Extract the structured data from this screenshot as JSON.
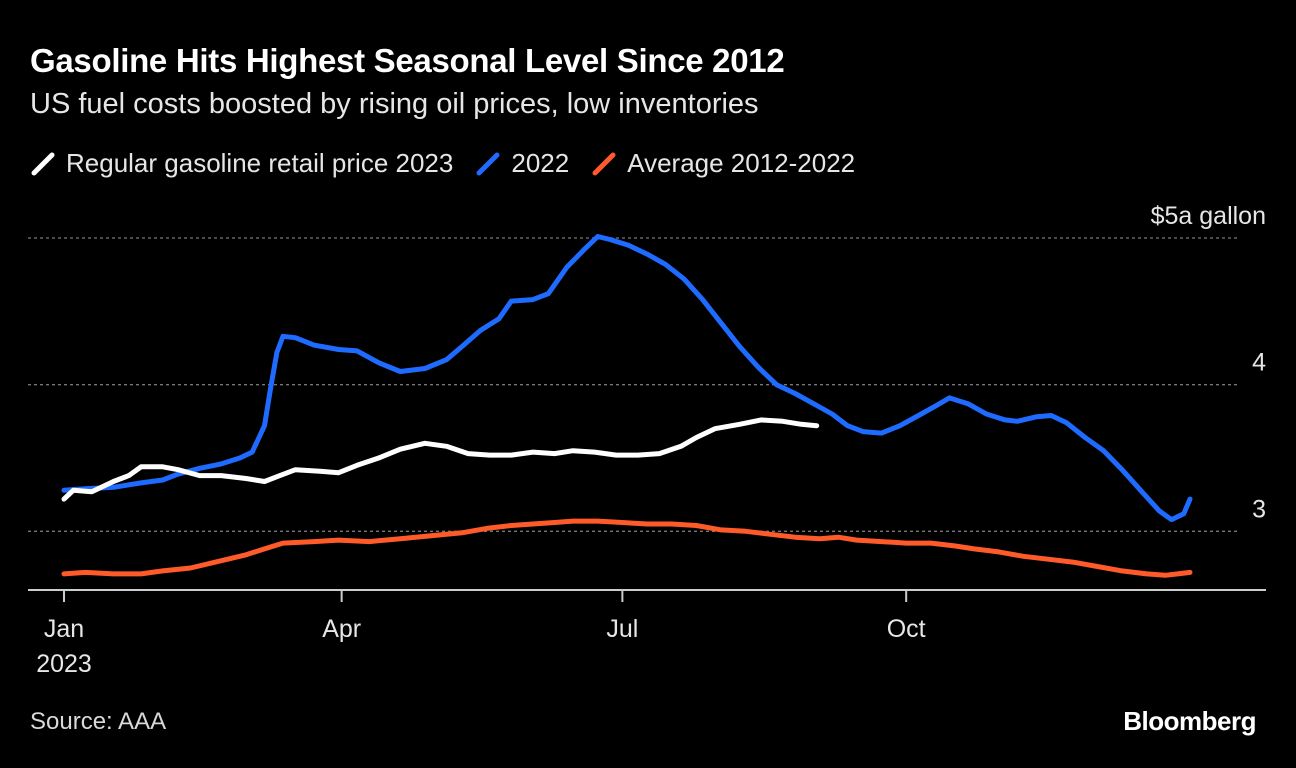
{
  "title": "Gasoline Hits Highest Seasonal Level Since 2012",
  "subtitle": "US fuel costs boosted by rising oil prices, low inventories",
  "source": "Source: AAA",
  "brand": "Bloomberg",
  "colors": {
    "background": "#000000",
    "series_2023": "#ffffff",
    "series_2022": "#1f6bff",
    "series_avg": "#ff5a2a",
    "grid": "#777777"
  },
  "chart_data": {
    "type": "line",
    "title": "Gasoline Hits Highest Seasonal Level Since 2012",
    "subtitle": "US fuel costs boosted by rising oil prices, low inventories",
    "xlabel": "",
    "ylabel": "",
    "x_ticks": [
      {
        "day": 1,
        "label": "Jan",
        "sublabel": "2023"
      },
      {
        "day": 91,
        "label": "Apr"
      },
      {
        "day": 182,
        "label": "Jul"
      },
      {
        "day": 274,
        "label": "Oct"
      }
    ],
    "x_range": [
      1,
      365
    ],
    "y_range": [
      2.6,
      5.0
    ],
    "y_ticks": [
      {
        "value": 5,
        "label": "$5a gallon"
      },
      {
        "value": 4,
        "label": "4"
      },
      {
        "value": 3,
        "label": "3"
      }
    ],
    "grid": true,
    "legend_placement": "top-left",
    "series": [
      {
        "name": "Regular gasoline retail price 2023",
        "color": "#ffffff",
        "points": [
          [
            1,
            3.22
          ],
          [
            4,
            3.28
          ],
          [
            10,
            3.27
          ],
          [
            17,
            3.34
          ],
          [
            22,
            3.38
          ],
          [
            26,
            3.44
          ],
          [
            33,
            3.44
          ],
          [
            38,
            3.42
          ],
          [
            45,
            3.38
          ],
          [
            52,
            3.38
          ],
          [
            60,
            3.36
          ],
          [
            66,
            3.34
          ],
          [
            71,
            3.38
          ],
          [
            76,
            3.42
          ],
          [
            84,
            3.41
          ],
          [
            90,
            3.4
          ],
          [
            96,
            3.45
          ],
          [
            103,
            3.5
          ],
          [
            110,
            3.56
          ],
          [
            118,
            3.6
          ],
          [
            125,
            3.58
          ],
          [
            132,
            3.53
          ],
          [
            139,
            3.52
          ],
          [
            146,
            3.52
          ],
          [
            153,
            3.54
          ],
          [
            160,
            3.53
          ],
          [
            166,
            3.55
          ],
          [
            173,
            3.54
          ],
          [
            180,
            3.52
          ],
          [
            187,
            3.52
          ],
          [
            194,
            3.53
          ],
          [
            201,
            3.58
          ],
          [
            206,
            3.64
          ],
          [
            212,
            3.7
          ],
          [
            220,
            3.73
          ],
          [
            227,
            3.76
          ],
          [
            234,
            3.75
          ],
          [
            240,
            3.73
          ],
          [
            245,
            3.72
          ]
        ]
      },
      {
        "name": "2022",
        "color": "#1f6bff",
        "points": [
          [
            1,
            3.28
          ],
          [
            8,
            3.29
          ],
          [
            17,
            3.3
          ],
          [
            26,
            3.33
          ],
          [
            33,
            3.35
          ],
          [
            38,
            3.39
          ],
          [
            45,
            3.43
          ],
          [
            52,
            3.46
          ],
          [
            58,
            3.5
          ],
          [
            62,
            3.54
          ],
          [
            66,
            3.72
          ],
          [
            68,
            3.98
          ],
          [
            70,
            4.22
          ],
          [
            72,
            4.33
          ],
          [
            76,
            4.32
          ],
          [
            82,
            4.27
          ],
          [
            90,
            4.24
          ],
          [
            96,
            4.23
          ],
          [
            103,
            4.15
          ],
          [
            110,
            4.09
          ],
          [
            118,
            4.11
          ],
          [
            125,
            4.17
          ],
          [
            130,
            4.26
          ],
          [
            136,
            4.37
          ],
          [
            142,
            4.45
          ],
          [
            146,
            4.57
          ],
          [
            153,
            4.58
          ],
          [
            158,
            4.62
          ],
          [
            164,
            4.8
          ],
          [
            170,
            4.93
          ],
          [
            174,
            5.01
          ],
          [
            178,
            4.99
          ],
          [
            184,
            4.95
          ],
          [
            190,
            4.89
          ],
          [
            196,
            4.82
          ],
          [
            202,
            4.72
          ],
          [
            208,
            4.58
          ],
          [
            214,
            4.42
          ],
          [
            220,
            4.26
          ],
          [
            226,
            4.12
          ],
          [
            232,
            4.0
          ],
          [
            238,
            3.94
          ],
          [
            244,
            3.87
          ],
          [
            250,
            3.8
          ],
          [
            255,
            3.72
          ],
          [
            260,
            3.68
          ],
          [
            266,
            3.67
          ],
          [
            272,
            3.72
          ],
          [
            278,
            3.79
          ],
          [
            284,
            3.86
          ],
          [
            288,
            3.91
          ],
          [
            294,
            3.87
          ],
          [
            300,
            3.8
          ],
          [
            306,
            3.76
          ],
          [
            310,
            3.75
          ],
          [
            316,
            3.78
          ],
          [
            321,
            3.79
          ],
          [
            326,
            3.74
          ],
          [
            332,
            3.64
          ],
          [
            338,
            3.55
          ],
          [
            344,
            3.42
          ],
          [
            350,
            3.28
          ],
          [
            356,
            3.14
          ],
          [
            360,
            3.08
          ],
          [
            364,
            3.12
          ],
          [
            366,
            3.22
          ]
        ]
      },
      {
        "name": "Average 2012-2022",
        "color": "#ff5a2a",
        "points": [
          [
            1,
            2.71
          ],
          [
            8,
            2.72
          ],
          [
            17,
            2.71
          ],
          [
            26,
            2.71
          ],
          [
            33,
            2.73
          ],
          [
            42,
            2.75
          ],
          [
            52,
            2.8
          ],
          [
            60,
            2.84
          ],
          [
            66,
            2.88
          ],
          [
            72,
            2.92
          ],
          [
            82,
            2.93
          ],
          [
            90,
            2.94
          ],
          [
            100,
            2.93
          ],
          [
            110,
            2.95
          ],
          [
            120,
            2.97
          ],
          [
            130,
            2.99
          ],
          [
            138,
            3.02
          ],
          [
            146,
            3.04
          ],
          [
            153,
            3.05
          ],
          [
            160,
            3.06
          ],
          [
            166,
            3.07
          ],
          [
            174,
            3.07
          ],
          [
            182,
            3.06
          ],
          [
            190,
            3.05
          ],
          [
            198,
            3.05
          ],
          [
            206,
            3.04
          ],
          [
            214,
            3.01
          ],
          [
            222,
            3.0
          ],
          [
            230,
            2.98
          ],
          [
            238,
            2.96
          ],
          [
            246,
            2.95
          ],
          [
            252,
            2.96
          ],
          [
            258,
            2.94
          ],
          [
            266,
            2.93
          ],
          [
            274,
            2.92
          ],
          [
            282,
            2.92
          ],
          [
            290,
            2.9
          ],
          [
            296,
            2.88
          ],
          [
            304,
            2.86
          ],
          [
            312,
            2.83
          ],
          [
            320,
            2.81
          ],
          [
            328,
            2.79
          ],
          [
            336,
            2.76
          ],
          [
            344,
            2.73
          ],
          [
            352,
            2.71
          ],
          [
            358,
            2.7
          ],
          [
            362,
            2.71
          ],
          [
            366,
            2.72
          ]
        ]
      }
    ]
  }
}
